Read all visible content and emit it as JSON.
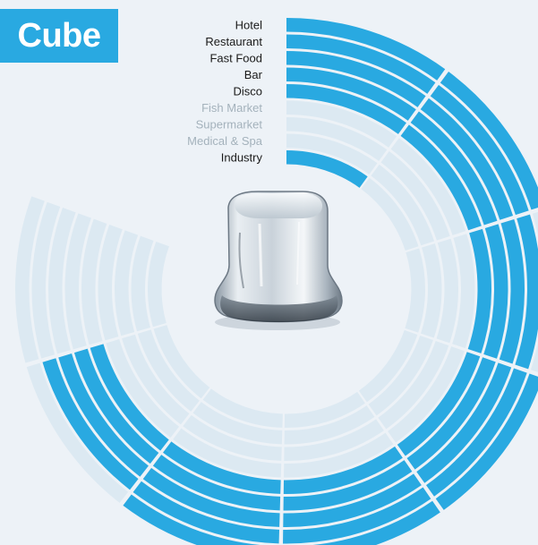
{
  "title": "Cube",
  "colors": {
    "active": "#29a9e1",
    "inactive": "#dce9f2",
    "label_active": "#1a1a1a",
    "label_inactive": "#a4b2bc",
    "background": "#edf2f7",
    "title_box": "#29a9e1"
  },
  "chart_data": {
    "type": "radial-bar",
    "title": "Cube",
    "segments": 8,
    "series": [
      {
        "name": "Hotel",
        "active": [
          1,
          1,
          0,
          1,
          1,
          1,
          0,
          0
        ]
      },
      {
        "name": "Restaurant",
        "active": [
          1,
          1,
          1,
          1,
          1,
          1,
          1,
          0
        ]
      },
      {
        "name": "Fast Food",
        "active": [
          1,
          1,
          1,
          1,
          1,
          1,
          1,
          0
        ]
      },
      {
        "name": "Bar",
        "active": [
          1,
          1,
          1,
          1,
          1,
          1,
          1,
          0
        ]
      },
      {
        "name": "Disco",
        "active": [
          1,
          1,
          1,
          1,
          1,
          1,
          1,
          0
        ]
      },
      {
        "name": "Fish Market",
        "active": [
          0,
          0,
          0,
          0,
          0,
          0,
          0,
          0
        ]
      },
      {
        "name": "Supermarket",
        "active": [
          0,
          0,
          0,
          0,
          0,
          0,
          0,
          0
        ]
      },
      {
        "name": "Medical & Spa",
        "active": [
          0,
          0,
          0,
          0,
          0,
          0,
          0,
          0
        ]
      },
      {
        "name": "Industry",
        "active": [
          1,
          0,
          0,
          0,
          0,
          0,
          0,
          0
        ]
      }
    ]
  }
}
